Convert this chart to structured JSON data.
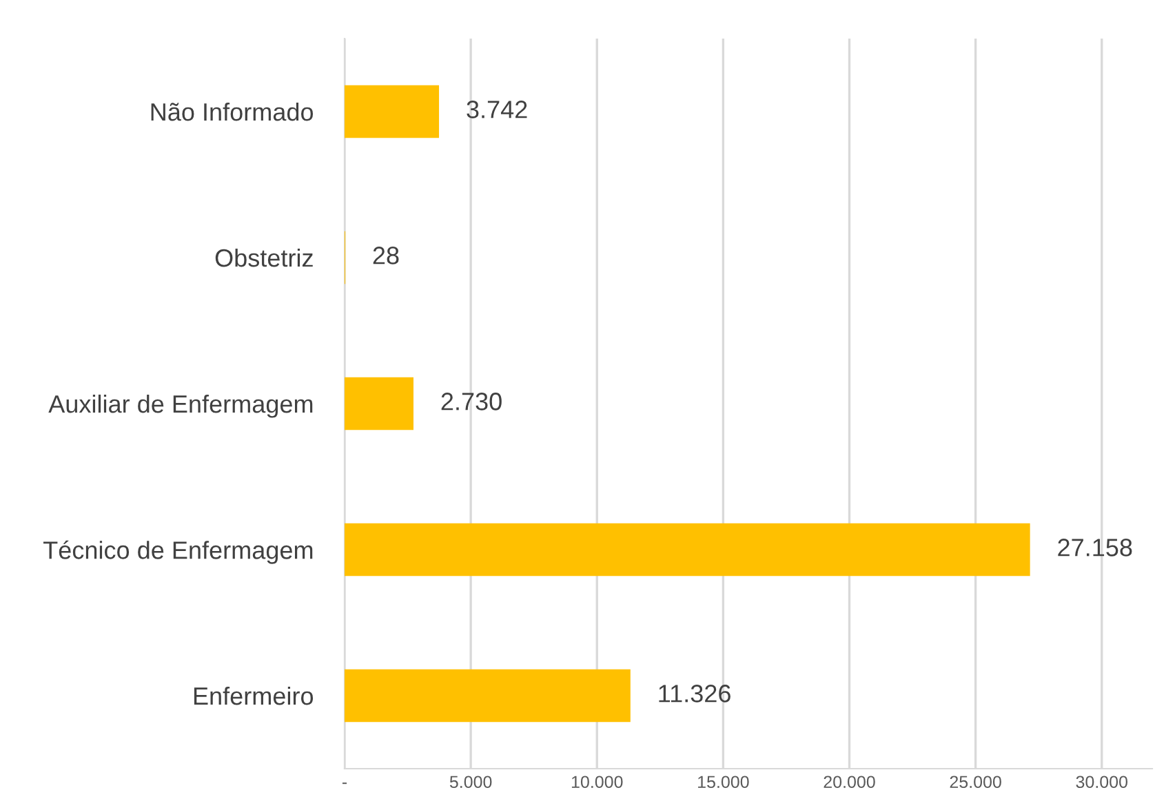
{
  "chart_data": {
    "type": "bar",
    "orientation": "horizontal",
    "categories": [
      "Não Informado",
      "Obstetriz",
      "Auxiliar de Enfermagem",
      "Técnico de Enfermagem",
      "Enfermeiro"
    ],
    "values": [
      3742,
      28,
      2730,
      27158,
      11326
    ],
    "value_labels": [
      "3.742",
      "28",
      "2.730",
      "27.158",
      "11.326"
    ],
    "color": "#ffc000",
    "xlim": [
      0,
      32000
    ],
    "xticks": [
      {
        "value": 0,
        "label": "-"
      },
      {
        "value": 5000,
        "label": "5.000"
      },
      {
        "value": 10000,
        "label": "10.000"
      },
      {
        "value": 15000,
        "label": "15.000"
      },
      {
        "value": 20000,
        "label": "20.000"
      },
      {
        "value": 25000,
        "label": "25.000"
      },
      {
        "value": 30000,
        "label": "30.000"
      }
    ],
    "grid": "x",
    "legend": false
  }
}
